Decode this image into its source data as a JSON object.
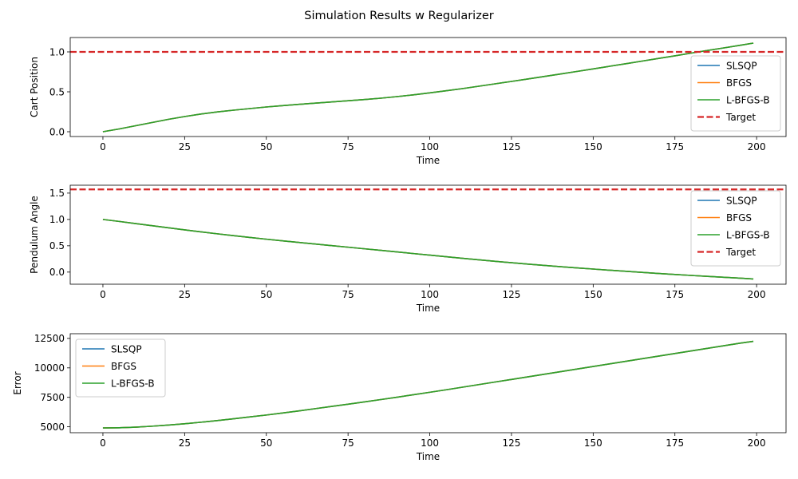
{
  "figure": {
    "title": "Simulation Results w Regularizer"
  },
  "colors": {
    "SLSQP": "#1f77b4",
    "BFGS": "#ff7f0e",
    "L-BFGS-B": "#2ca02c",
    "Target": "#d62728"
  },
  "chart_data": [
    {
      "type": "line",
      "title": "",
      "xlabel": "Time",
      "ylabel": "Cart Position",
      "xlim": [
        -10,
        209
      ],
      "ylim": [
        -0.06,
        1.18
      ],
      "xticks": [
        0,
        25,
        50,
        75,
        100,
        125,
        150,
        175,
        200
      ],
      "xtick_labels": [
        "0",
        "25",
        "50",
        "75",
        "100",
        "125",
        "150",
        "175",
        "200"
      ],
      "yticks": [
        0.0,
        0.5,
        1.0
      ],
      "ytick_labels": [
        "0.0",
        "0.5",
        "1.0"
      ],
      "legend_position": "lower-right",
      "x": [
        0,
        5,
        10,
        15,
        20,
        25,
        30,
        35,
        40,
        45,
        50,
        55,
        60,
        65,
        70,
        75,
        80,
        85,
        90,
        95,
        100,
        105,
        110,
        115,
        120,
        125,
        130,
        135,
        140,
        145,
        150,
        155,
        160,
        165,
        170,
        175,
        180,
        185,
        190,
        195,
        199
      ],
      "series": [
        {
          "name": "SLSQP",
          "values": [
            0.0,
            0.035,
            0.075,
            0.115,
            0.155,
            0.19,
            0.222,
            0.248,
            0.27,
            0.29,
            0.31,
            0.327,
            0.343,
            0.358,
            0.373,
            0.388,
            0.403,
            0.42,
            0.44,
            0.462,
            0.487,
            0.513,
            0.54,
            0.57,
            0.6,
            0.63,
            0.661,
            0.692,
            0.723,
            0.755,
            0.787,
            0.82,
            0.852,
            0.885,
            0.918,
            0.951,
            0.985,
            1.018,
            1.05,
            1.083,
            1.11
          ]
        },
        {
          "name": "BFGS",
          "values": [
            0.0,
            0.035,
            0.075,
            0.115,
            0.155,
            0.19,
            0.222,
            0.248,
            0.27,
            0.29,
            0.31,
            0.327,
            0.343,
            0.358,
            0.373,
            0.388,
            0.403,
            0.42,
            0.44,
            0.462,
            0.487,
            0.513,
            0.54,
            0.57,
            0.6,
            0.63,
            0.661,
            0.692,
            0.723,
            0.755,
            0.787,
            0.82,
            0.852,
            0.885,
            0.918,
            0.951,
            0.985,
            1.018,
            1.05,
            1.083,
            1.11
          ]
        },
        {
          "name": "L-BFGS-B",
          "values": [
            0.0,
            0.035,
            0.075,
            0.115,
            0.155,
            0.19,
            0.222,
            0.248,
            0.27,
            0.29,
            0.31,
            0.327,
            0.343,
            0.358,
            0.373,
            0.388,
            0.403,
            0.42,
            0.44,
            0.462,
            0.487,
            0.513,
            0.54,
            0.57,
            0.6,
            0.63,
            0.661,
            0.692,
            0.723,
            0.755,
            0.787,
            0.82,
            0.852,
            0.885,
            0.918,
            0.951,
            0.985,
            1.018,
            1.05,
            1.083,
            1.11
          ]
        }
      ],
      "target": {
        "name": "Target",
        "value": 1.0
      }
    },
    {
      "type": "line",
      "title": "",
      "xlabel": "Time",
      "ylabel": "Pendulum Angle",
      "xlim": [
        -10,
        209
      ],
      "ylim": [
        -0.23,
        1.65
      ],
      "xticks": [
        0,
        25,
        50,
        75,
        100,
        125,
        150,
        175,
        200
      ],
      "xtick_labels": [
        "0",
        "25",
        "50",
        "75",
        "100",
        "125",
        "150",
        "175",
        "200"
      ],
      "yticks": [
        0.0,
        0.5,
        1.0,
        1.5
      ],
      "ytick_labels": [
        "0.0",
        "0.5",
        "1.0",
        "1.5"
      ],
      "legend_position": "upper-right",
      "x": [
        0,
        5,
        10,
        15,
        20,
        25,
        30,
        35,
        40,
        45,
        50,
        55,
        60,
        65,
        70,
        75,
        80,
        85,
        90,
        95,
        100,
        105,
        110,
        115,
        120,
        125,
        130,
        135,
        140,
        145,
        150,
        155,
        160,
        165,
        170,
        175,
        180,
        185,
        190,
        195,
        199
      ],
      "series": [
        {
          "name": "SLSQP",
          "values": [
            1.0,
            0.962,
            0.922,
            0.882,
            0.842,
            0.802,
            0.764,
            0.727,
            0.692,
            0.658,
            0.625,
            0.594,
            0.563,
            0.533,
            0.503,
            0.473,
            0.443,
            0.413,
            0.383,
            0.352,
            0.322,
            0.292,
            0.262,
            0.233,
            0.205,
            0.178,
            0.152,
            0.127,
            0.103,
            0.08,
            0.058,
            0.036,
            0.015,
            -0.006,
            -0.026,
            -0.045,
            -0.063,
            -0.081,
            -0.098,
            -0.115,
            -0.13
          ]
        },
        {
          "name": "BFGS",
          "values": [
            1.0,
            0.962,
            0.922,
            0.882,
            0.842,
            0.802,
            0.764,
            0.727,
            0.692,
            0.658,
            0.625,
            0.594,
            0.563,
            0.533,
            0.503,
            0.473,
            0.443,
            0.413,
            0.383,
            0.352,
            0.322,
            0.292,
            0.262,
            0.233,
            0.205,
            0.178,
            0.152,
            0.127,
            0.103,
            0.08,
            0.058,
            0.036,
            0.015,
            -0.006,
            -0.026,
            -0.045,
            -0.063,
            -0.081,
            -0.098,
            -0.115,
            -0.13
          ]
        },
        {
          "name": "L-BFGS-B",
          "values": [
            1.0,
            0.962,
            0.922,
            0.882,
            0.842,
            0.802,
            0.764,
            0.727,
            0.692,
            0.658,
            0.625,
            0.594,
            0.563,
            0.533,
            0.503,
            0.473,
            0.443,
            0.413,
            0.383,
            0.352,
            0.322,
            0.292,
            0.262,
            0.233,
            0.205,
            0.178,
            0.152,
            0.127,
            0.103,
            0.08,
            0.058,
            0.036,
            0.015,
            -0.006,
            -0.026,
            -0.045,
            -0.063,
            -0.081,
            -0.098,
            -0.115,
            -0.13
          ]
        }
      ],
      "target": {
        "name": "Target",
        "value": 1.5708
      }
    },
    {
      "type": "line",
      "title": "",
      "xlabel": "Time",
      "ylabel": "Error",
      "xlim": [
        -10,
        209
      ],
      "ylim": [
        4500,
        12900
      ],
      "xticks": [
        0,
        25,
        50,
        75,
        100,
        125,
        150,
        175,
        200
      ],
      "xtick_labels": [
        "0",
        "25",
        "50",
        "75",
        "100",
        "125",
        "150",
        "175",
        "200"
      ],
      "yticks": [
        5000,
        7500,
        10000,
        12500
      ],
      "ytick_labels": [
        "5000",
        "7500",
        "10000",
        "12500"
      ],
      "legend_position": "upper-left",
      "x": [
        0,
        5,
        10,
        15,
        20,
        25,
        30,
        35,
        40,
        45,
        50,
        55,
        60,
        65,
        70,
        75,
        80,
        85,
        90,
        95,
        100,
        105,
        110,
        115,
        120,
        125,
        130,
        135,
        140,
        145,
        150,
        155,
        160,
        165,
        170,
        175,
        180,
        185,
        190,
        195,
        199
      ],
      "series": [
        {
          "name": "SLSQP",
          "values": [
            4900,
            4920,
            4970,
            5050,
            5150,
            5260,
            5390,
            5530,
            5680,
            5840,
            6000,
            6170,
            6350,
            6540,
            6730,
            6920,
            7110,
            7310,
            7510,
            7720,
            7930,
            8140,
            8360,
            8580,
            8800,
            9020,
            9240,
            9460,
            9680,
            9900,
            10120,
            10340,
            10560,
            10780,
            11000,
            11220,
            11440,
            11660,
            11880,
            12100,
            12250
          ]
        },
        {
          "name": "BFGS",
          "values": [
            4900,
            4920,
            4970,
            5050,
            5150,
            5260,
            5390,
            5530,
            5680,
            5840,
            6000,
            6170,
            6350,
            6540,
            6730,
            6920,
            7110,
            7310,
            7510,
            7720,
            7930,
            8140,
            8360,
            8580,
            8800,
            9020,
            9240,
            9460,
            9680,
            9900,
            10120,
            10340,
            10560,
            10780,
            11000,
            11220,
            11440,
            11660,
            11880,
            12100,
            12250
          ]
        },
        {
          "name": "L-BFGS-B",
          "values": [
            4900,
            4920,
            4970,
            5050,
            5150,
            5260,
            5390,
            5530,
            5680,
            5840,
            6000,
            6170,
            6350,
            6540,
            6730,
            6920,
            7110,
            7310,
            7510,
            7720,
            7930,
            8140,
            8360,
            8580,
            8800,
            9020,
            9240,
            9460,
            9680,
            9900,
            10120,
            10340,
            10560,
            10780,
            11000,
            11220,
            11440,
            11660,
            11880,
            12100,
            12250
          ]
        }
      ]
    }
  ]
}
